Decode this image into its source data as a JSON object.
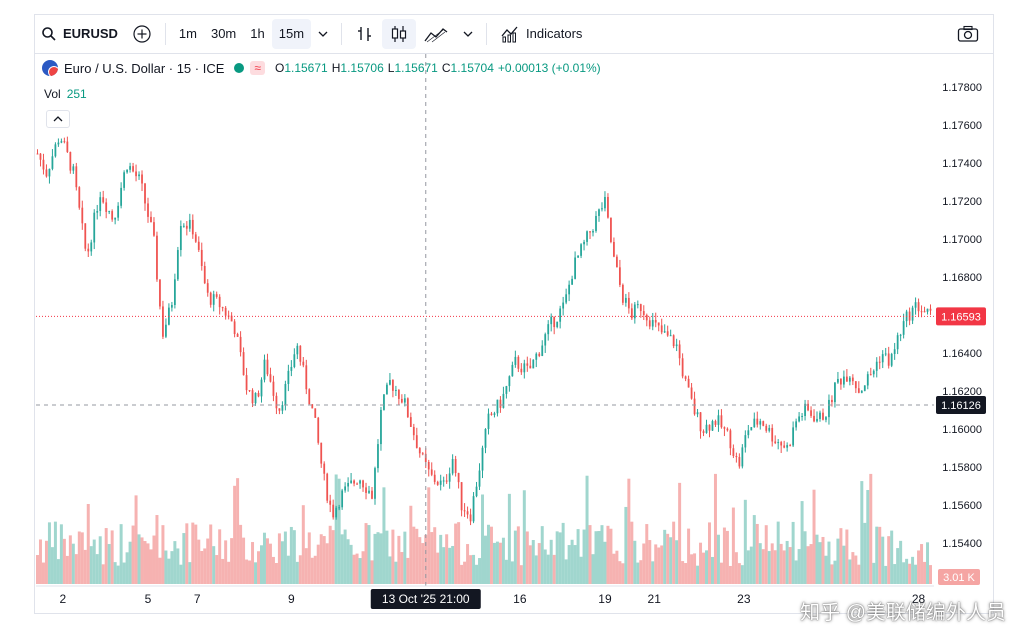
{
  "toolbar": {
    "symbol": "EURUSD",
    "intervals": [
      "1m",
      "30m",
      "1h",
      "15m"
    ],
    "active_interval": "15m",
    "indicators_label": "Indicators"
  },
  "legend": {
    "title": "Euro / U.S. Dollar · 15 · ICE",
    "wave": "≈",
    "o_label": "O",
    "o_value": "1.15671",
    "h_label": "H",
    "h_value": "1.15706",
    "l_label": "L",
    "l_value": "1.15671",
    "c_label": "C",
    "c_value": "1.15704",
    "change": "+0.00013 (+0.01%)",
    "vol_label": "Vol",
    "vol_value": "251"
  },
  "colors": {
    "up": "#26a69a",
    "down": "#ef5350",
    "vol_up": "#8fcfc6",
    "vol_down": "#f5a5a3",
    "last_price": "#f23645",
    "crosshair_label": "#131722"
  },
  "watermark": "知乎 @美联储编外人员",
  "chart_data": {
    "type": "candlestick",
    "symbol": "EURUSD",
    "interval": "15",
    "exchange": "ICE",
    "y_ticks": [
      1.178,
      1.176,
      1.174,
      1.172,
      1.17,
      1.168,
      1.166,
      1.164,
      1.162,
      1.16,
      1.158,
      1.156,
      1.154
    ],
    "y_tick_labels": [
      "1.17800",
      "1.17600",
      "1.17400",
      "1.17200",
      "1.17000",
      "1.16800",
      "1.16600",
      "1.16400",
      "1.16200",
      "1.16000",
      "1.15800",
      "1.15600",
      "1.15400"
    ],
    "ylim": [
      1.153,
      1.1785
    ],
    "x_ticks": [
      "2",
      "5",
      "7",
      "9",
      "13 Oct '25  21:00",
      "16",
      "19",
      "21",
      "23",
      "28"
    ],
    "x_tick_positions": [
      0.03,
      0.125,
      0.18,
      0.285,
      0.435,
      0.54,
      0.635,
      0.69,
      0.79,
      0.985
    ],
    "last_price": 1.16593,
    "last_price_label": "1.16593",
    "crosshair_price": 1.16126,
    "crosshair_price_label": "1.16126",
    "crosshair_time_label": "13 Oct '25  21:00",
    "crosshair_x_fraction": 0.435,
    "volume_label": "3.01 K",
    "path_anchors": [
      [
        0.0,
        1.1745
      ],
      [
        0.01,
        1.1735
      ],
      [
        0.025,
        1.1755
      ],
      [
        0.04,
        1.1735
      ],
      [
        0.055,
        1.169
      ],
      [
        0.07,
        1.1725
      ],
      [
        0.085,
        1.171
      ],
      [
        0.1,
        1.174
      ],
      [
        0.115,
        1.173
      ],
      [
        0.13,
        1.17
      ],
      [
        0.14,
        1.165
      ],
      [
        0.15,
        1.1665
      ],
      [
        0.16,
        1.171
      ],
      [
        0.175,
        1.1705
      ],
      [
        0.19,
        1.167
      ],
      [
        0.205,
        1.1665
      ],
      [
        0.22,
        1.1655
      ],
      [
        0.235,
        1.162
      ],
      [
        0.245,
        1.1615
      ],
      [
        0.255,
        1.1635
      ],
      [
        0.27,
        1.161
      ],
      [
        0.28,
        1.1625
      ],
      [
        0.29,
        1.1645
      ],
      [
        0.3,
        1.1625
      ],
      [
        0.31,
        1.1605
      ],
      [
        0.32,
        1.1575
      ],
      [
        0.33,
        1.1555
      ],
      [
        0.34,
        1.1565
      ],
      [
        0.35,
        1.157
      ],
      [
        0.36,
        1.1575
      ],
      [
        0.375,
        1.1565
      ],
      [
        0.385,
        1.161
      ],
      [
        0.395,
        1.1625
      ],
      [
        0.41,
        1.1615
      ],
      [
        0.42,
        1.16
      ],
      [
        0.43,
        1.1585
      ],
      [
        0.44,
        1.1575
      ],
      [
        0.455,
        1.157
      ],
      [
        0.465,
        1.1585
      ],
      [
        0.475,
        1.156
      ],
      [
        0.485,
        1.1555
      ],
      [
        0.495,
        1.158
      ],
      [
        0.505,
        1.1605
      ],
      [
        0.52,
        1.1615
      ],
      [
        0.535,
        1.1635
      ],
      [
        0.55,
        1.163
      ],
      [
        0.565,
        1.1645
      ],
      [
        0.575,
        1.1655
      ],
      [
        0.59,
        1.1665
      ],
      [
        0.6,
        1.1685
      ],
      [
        0.61,
        1.1695
      ],
      [
        0.625,
        1.171
      ],
      [
        0.635,
        1.172
      ],
      [
        0.645,
        1.169
      ],
      [
        0.655,
        1.167
      ],
      [
        0.665,
        1.166
      ],
      [
        0.675,
        1.1665
      ],
      [
        0.69,
        1.1655
      ],
      [
        0.7,
        1.165
      ],
      [
        0.715,
        1.1645
      ],
      [
        0.725,
        1.1625
      ],
      [
        0.735,
        1.161
      ],
      [
        0.745,
        1.16
      ],
      [
        0.76,
        1.1605
      ],
      [
        0.775,
        1.1595
      ],
      [
        0.785,
        1.158
      ],
      [
        0.795,
        1.16
      ],
      [
        0.81,
        1.1605
      ],
      [
        0.825,
        1.1595
      ],
      [
        0.84,
        1.159
      ],
      [
        0.85,
        1.1605
      ],
      [
        0.86,
        1.161
      ],
      [
        0.875,
        1.1605
      ],
      [
        0.885,
        1.161
      ],
      [
        0.895,
        1.1625
      ],
      [
        0.91,
        1.163
      ],
      [
        0.92,
        1.162
      ],
      [
        0.935,
        1.163
      ],
      [
        0.945,
        1.164
      ],
      [
        0.955,
        1.1635
      ],
      [
        0.965,
        1.165
      ],
      [
        0.975,
        1.166
      ],
      [
        0.985,
        1.1665
      ],
      [
        1.0,
        1.16593
      ]
    ]
  }
}
